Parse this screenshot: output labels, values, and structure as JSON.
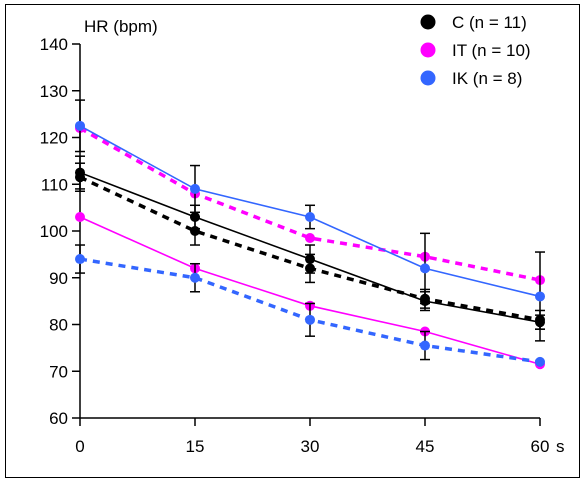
{
  "chart_data": {
    "type": "line",
    "title": "",
    "ylabel": "HR (bpm)",
    "x_unit": "s",
    "x": [
      0,
      15,
      30,
      45,
      60
    ],
    "x_tick_labels": [
      "0",
      "15",
      "30",
      "45",
      "60"
    ],
    "ylim": [
      60,
      140
    ],
    "y_ticks": [
      60,
      70,
      80,
      90,
      100,
      110,
      120,
      130,
      140
    ],
    "legend_position": "top-right",
    "legend": [
      {
        "label": "C (n = 11)",
        "color": "#000000"
      },
      {
        "label": "IT (n = 10)",
        "color": "#ff00ff"
      },
      {
        "label": "IK (n = 8)",
        "color": "#3366ff"
      }
    ],
    "series": [
      {
        "group": "C",
        "style": "solid",
        "color": "#000000",
        "values": [
          112.5,
          103,
          94,
          85,
          80.5
        ],
        "error": [
          3.5,
          2.5,
          3.0,
          2.0,
          1.5
        ]
      },
      {
        "group": "C",
        "style": "dashed",
        "color": "#000000",
        "values": [
          111.5,
          100,
          92,
          85.5,
          81
        ],
        "error": [
          3.0,
          3.0,
          3.0,
          2.0,
          2.0
        ]
      },
      {
        "group": "IT",
        "style": "solid",
        "color": "#ff00ff",
        "values": [
          103,
          92,
          84,
          78.5,
          71.5
        ],
        "error": [
          0,
          0,
          0,
          0,
          0
        ]
      },
      {
        "group": "IT",
        "style": "dashed",
        "color": "#ff00ff",
        "values": [
          122,
          108,
          98.5,
          94.5,
          89.5
        ],
        "error": [
          0,
          0,
          0,
          0,
          0
        ]
      },
      {
        "group": "IK",
        "style": "solid",
        "color": "#3366ff",
        "values": [
          122.5,
          109,
          103,
          92,
          86
        ],
        "error": [
          5.5,
          5.0,
          2.5,
          7.5,
          9.5
        ]
      },
      {
        "group": "IK",
        "style": "dashed",
        "color": "#3366ff",
        "values": [
          94,
          90,
          81,
          75.5,
          72
        ],
        "error": [
          3.0,
          3.0,
          3.5,
          3.0,
          0
        ]
      }
    ]
  }
}
